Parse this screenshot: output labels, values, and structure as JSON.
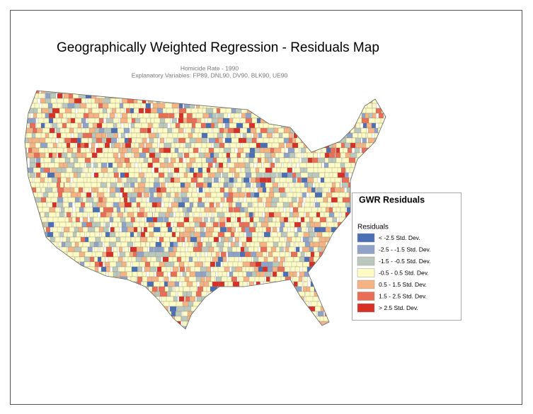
{
  "header": {
    "title": "Geographically Weighted Regression - Residuals Map"
  },
  "subtitle": {
    "line1": "Homicide Rate - 1990",
    "line2": "Explanatory Variables: FP89, DNL90, DV90, BLK90, UE90"
  },
  "legend": {
    "title": "GWR Residuals",
    "subtitle": "Residuals",
    "items": [
      {
        "label": "< -2.5 Std. Dev.",
        "color": "#4a6fb5"
      },
      {
        "label": "-2.5 - -1.5 Std. Dev.",
        "color": "#8fa3c9"
      },
      {
        "label": "-1.5 - -0.5 Std. Dev.",
        "color": "#b9c7bd"
      },
      {
        "label": "-0.5 - 0.5 Std. Dev.",
        "color": "#fefbc4"
      },
      {
        "label": "0.5 - 1.5 Std. Dev.",
        "color": "#f4b383"
      },
      {
        "label": "1.5 - 2.5 Std. Dev.",
        "color": "#e96e55"
      },
      {
        "label": "> 2.5 Std. Dev.",
        "color": "#d73027"
      }
    ]
  }
}
